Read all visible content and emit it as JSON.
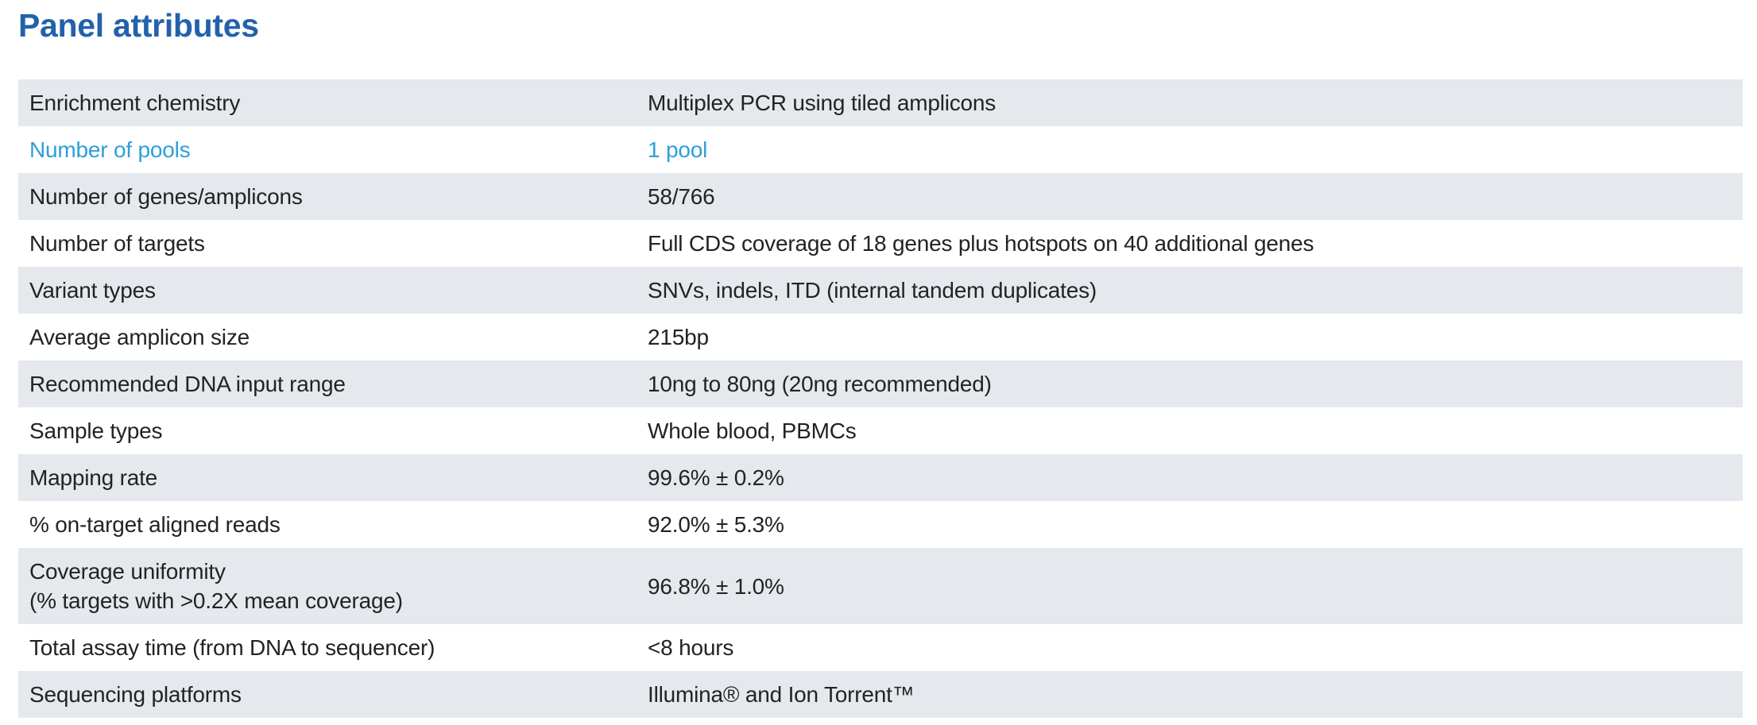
{
  "page": {
    "title": "Panel attributes"
  },
  "colors": {
    "title": "#2361ab",
    "highlight": "#2d9fd9",
    "row_stripe": "#e5e8ec",
    "text": "#232323",
    "background": "#ffffff"
  },
  "table": {
    "rows": [
      {
        "label": "Enrichment chemistry",
        "value": "Multiplex PCR using tiled amplicons",
        "highlight": false
      },
      {
        "label": "Number of pools",
        "value": "1 pool",
        "highlight": true
      },
      {
        "label": "Number of genes/amplicons",
        "value": "58/766",
        "highlight": false
      },
      {
        "label": "Number of targets",
        "value": "Full CDS coverage of 18 genes plus hotspots on 40 additional genes",
        "highlight": false
      },
      {
        "label": "Variant types",
        "value": "SNVs, indels, ITD (internal tandem duplicates)",
        "highlight": false
      },
      {
        "label": "Average amplicon size",
        "value": "215bp",
        "highlight": false
      },
      {
        "label": "Recommended DNA input range",
        "value": "10ng to 80ng (20ng recommended)",
        "highlight": false
      },
      {
        "label": "Sample types",
        "value": "Whole blood, PBMCs",
        "highlight": false
      },
      {
        "label": "Mapping rate",
        "value": "99.6% ± 0.2%",
        "highlight": false
      },
      {
        "label": "% on-target aligned reads",
        "value": "92.0% ± 5.3%",
        "highlight": false
      },
      {
        "label": "Coverage uniformity\n(% targets with >0.2X mean coverage)",
        "value": "96.8% ± 1.0%",
        "highlight": false
      },
      {
        "label": "Total assay time (from DNA to sequencer)",
        "value": "<8 hours",
        "highlight": false
      },
      {
        "label": "Sequencing platforms",
        "value": "Illumina® and Ion Torrent™",
        "highlight": false
      }
    ]
  }
}
